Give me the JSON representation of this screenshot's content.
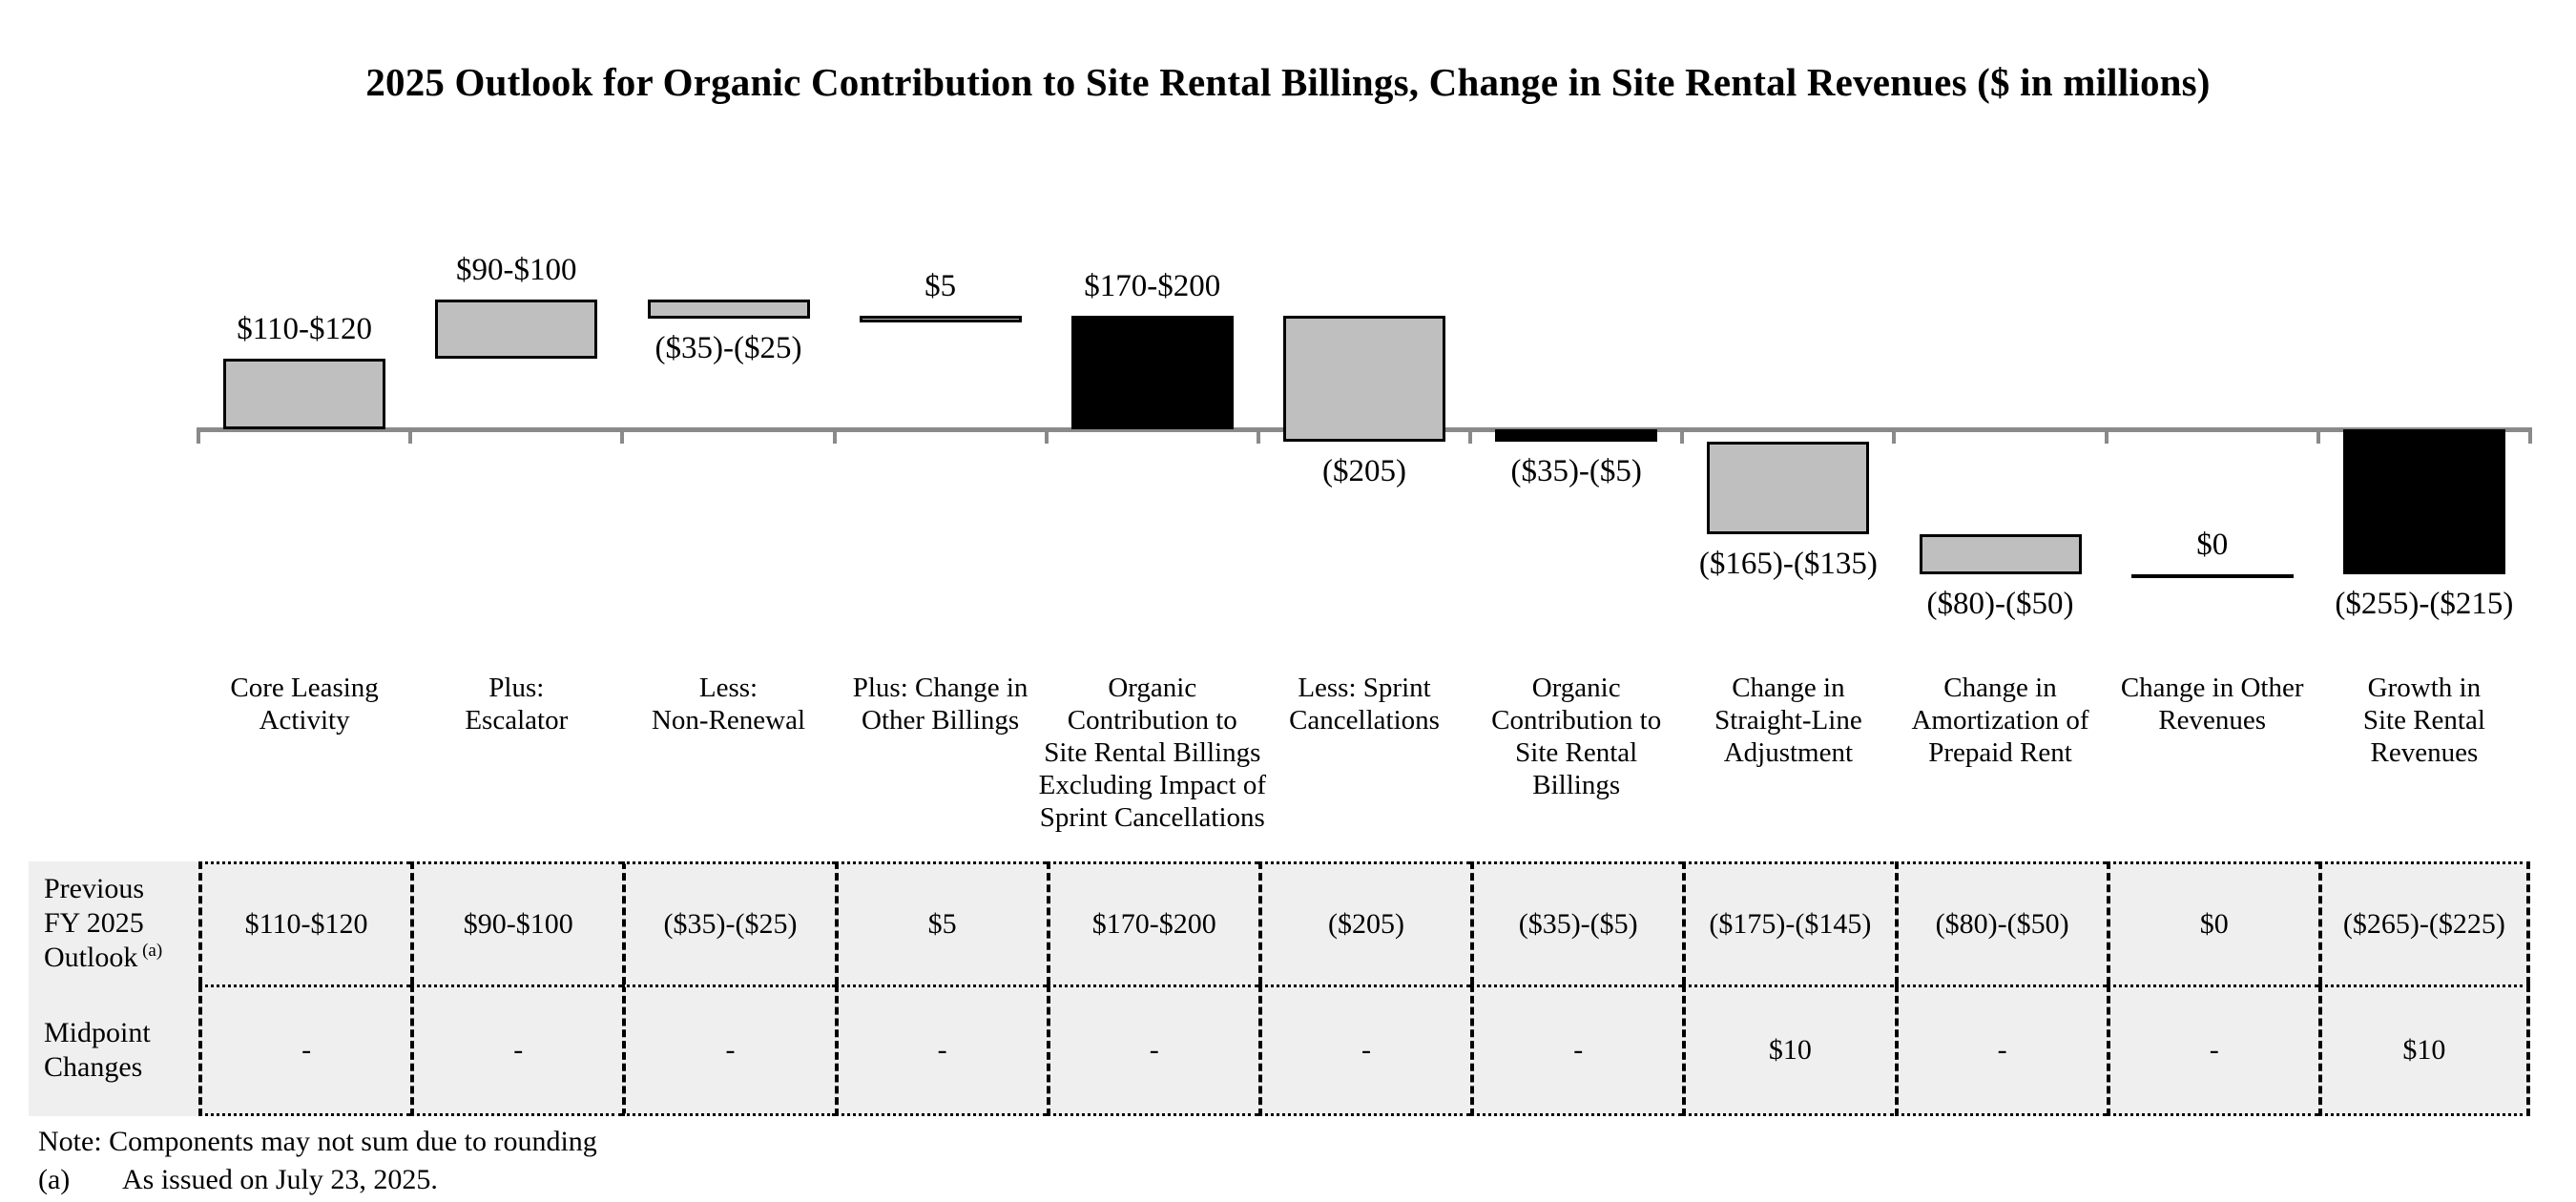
{
  "title": "2025 Outlook for Organic Contribution to Site Rental Billings, Change in Site Rental Revenues ($ in millions)",
  "chart_data": {
    "type": "bar",
    "subtype": "waterfall",
    "title": "2025 Outlook for Organic Contribution to Site Rental Billings, Change in Site Rental Revenues ($ in millions)",
    "unit": "$ in millions",
    "ylim": [
      -255,
      210
    ],
    "grid": false,
    "legend": "none",
    "axis_color": "#8a8a8a",
    "bar_colors": {
      "gray": "#bfbfbf",
      "black": "#000000"
    },
    "categories": [
      "Core Leasing Activity",
      "Plus: Escalator",
      "Less: Non-Renewal",
      "Plus: Change in Other Billings",
      "Organic Contribution to Site Rental Billings Excluding Impact of Sprint Cancellations",
      "Less: Sprint Cancellations",
      "Organic Contribution to Site Rental Billings",
      "Change in Straight-Line Adjustment",
      "Change in Amortization of Prepaid Rent",
      "Change in Other Revenues",
      "Growth in Site Rental Revenues"
    ],
    "category_lines": [
      [
        "Core Leasing",
        "Activity"
      ],
      [
        "Plus:",
        "Escalator"
      ],
      [
        "Less:",
        "Non-Renewal"
      ],
      [
        "Plus: Change in",
        "Other Billings"
      ],
      [
        "Organic",
        "Contribution to",
        "Site Rental Billings",
        "Excluding Impact of",
        "Sprint Cancellations"
      ],
      [
        "Less: Sprint",
        "Cancellations"
      ],
      [
        "Organic",
        "Contribution to",
        "Site Rental",
        "Billings"
      ],
      [
        "Change in",
        "Straight-Line",
        "Adjustment"
      ],
      [
        "Change in",
        "Amortization of",
        "Prepaid Rent"
      ],
      [
        "Change in Other",
        "Revenues"
      ],
      [
        "Growth in",
        "Site Rental",
        "Revenues"
      ]
    ],
    "bars": [
      {
        "category": "Core Leasing Activity",
        "label": "$110-$120",
        "value_range": [
          110,
          120
        ],
        "from": 0,
        "to": 115,
        "color": "gray",
        "label_position": "above"
      },
      {
        "category": "Plus: Escalator",
        "label": "$90-$100",
        "value_range": [
          90,
          100
        ],
        "from": 115,
        "to": 210,
        "color": "gray",
        "label_position": "above"
      },
      {
        "category": "Less: Non-Renewal",
        "label": "($35)-($25)",
        "value_range": [
          -35,
          -25
        ],
        "from": 210,
        "to": 180,
        "color": "gray",
        "label_position": "below"
      },
      {
        "category": "Plus: Change in Other Billings",
        "label": "$5",
        "value_range": [
          5,
          5
        ],
        "from": 180,
        "to": 185,
        "color": "gray",
        "label_position": "above"
      },
      {
        "category": "Organic Contribution to Site Rental Billings Excluding Impact of Sprint Cancellations",
        "label": "$170-$200",
        "value_range": [
          170,
          200
        ],
        "from": 0,
        "to": 185,
        "color": "black",
        "label_position": "above"
      },
      {
        "category": "Less: Sprint Cancellations",
        "label": "($205)",
        "value_range": [
          -205,
          -205
        ],
        "from": 185,
        "to": -20,
        "color": "gray",
        "label_position": "below"
      },
      {
        "category": "Organic Contribution to Site Rental Billings",
        "label": "($35)-($5)",
        "value_range": [
          -35,
          -5
        ],
        "from": 0,
        "to": -20,
        "color": "black",
        "label_position": "below"
      },
      {
        "category": "Change in Straight-Line Adjustment",
        "label": "($165)-($135)",
        "value_range": [
          -165,
          -135
        ],
        "from": -20,
        "to": -170,
        "color": "gray",
        "label_position": "below"
      },
      {
        "category": "Change in Amortization of Prepaid Rent",
        "label": "($80)-($50)",
        "value_range": [
          -80,
          -50
        ],
        "from": -170,
        "to": -235,
        "color": "gray",
        "label_position": "below"
      },
      {
        "category": "Change in Other Revenues",
        "label": "$0",
        "value_range": [
          0,
          0
        ],
        "from": -235,
        "to": -235,
        "color": "black",
        "label_position": "above"
      },
      {
        "category": "Growth in Site Rental Revenues",
        "label": "($255)-($215)",
        "value_range": [
          -255,
          -215
        ],
        "from": 0,
        "to": -235,
        "color": "black",
        "label_position": "below"
      }
    ]
  },
  "table": {
    "rows": [
      {
        "label": "Previous FY 2025 Outlook",
        "label_lines": [
          "Previous",
          "FY 2025",
          "Outlook"
        ],
        "label_superscript": "(a)",
        "values": [
          "$110-$120",
          "$90-$100",
          "($35)-($25)",
          "$5",
          "$170-$200",
          "($205)",
          "($35)-($5)",
          "($175)-($145)",
          "($80)-($50)",
          "$0",
          "($265)-($225)"
        ]
      },
      {
        "label": "Midpoint Changes",
        "label_lines": [
          "Midpoint",
          "Changes"
        ],
        "label_superscript": "",
        "values": [
          "-",
          "-",
          "-",
          "-",
          "-",
          "-",
          "-",
          "$10",
          "-",
          "-",
          "$10"
        ]
      }
    ]
  },
  "notes": {
    "note": "Note: Components may not sum due to rounding",
    "footnote_marker": "(a)",
    "footnote_text": "As issued on July 23, 2025."
  }
}
